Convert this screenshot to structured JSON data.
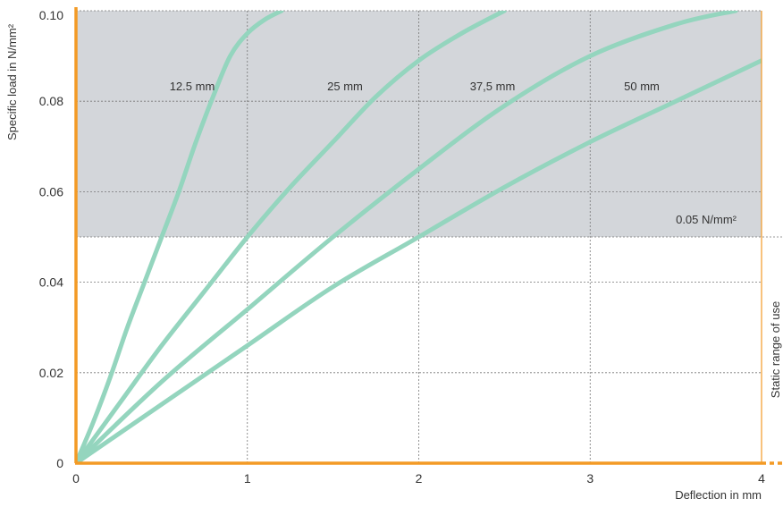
{
  "chart_data": {
    "type": "line",
    "xlabel": "Deflection in mm",
    "ylabel": "Specific load in N/mm²",
    "xlim": [
      0,
      4
    ],
    "ylim": [
      0,
      0.1
    ],
    "x_ticks": [
      "0",
      "1",
      "2",
      "3",
      "4"
    ],
    "y_ticks": [
      "0",
      "0.02",
      "0.04",
      "0.06",
      "0.08",
      "0.10"
    ],
    "grid": true,
    "static_range": {
      "threshold": 0.05,
      "threshold_label": "0.05 N/mm²",
      "label": "Static range of use"
    },
    "series": [
      {
        "name": "12.5 mm",
        "points": [
          [
            0,
            0
          ],
          [
            0.1,
            0.009
          ],
          [
            0.2,
            0.019
          ],
          [
            0.3,
            0.03
          ],
          [
            0.4,
            0.04
          ],
          [
            0.5,
            0.05
          ],
          [
            0.6,
            0.06
          ],
          [
            0.7,
            0.071
          ],
          [
            0.8,
            0.081
          ],
          [
            0.9,
            0.09
          ],
          [
            1.0,
            0.095
          ],
          [
            1.1,
            0.098
          ],
          [
            1.2,
            0.1
          ]
        ]
      },
      {
        "name": "25 mm",
        "points": [
          [
            0,
            0
          ],
          [
            0.25,
            0.013
          ],
          [
            0.5,
            0.026
          ],
          [
            0.75,
            0.038
          ],
          [
            1.0,
            0.05
          ],
          [
            1.25,
            0.061
          ],
          [
            1.5,
            0.071
          ],
          [
            1.75,
            0.081
          ],
          [
            2.0,
            0.089
          ],
          [
            2.25,
            0.095
          ],
          [
            2.5,
            0.1
          ]
        ]
      },
      {
        "name": "37,5 mm",
        "points": [
          [
            0,
            0
          ],
          [
            0.5,
            0.018
          ],
          [
            1.0,
            0.034
          ],
          [
            1.5,
            0.05
          ],
          [
            2.0,
            0.065
          ],
          [
            2.5,
            0.079
          ],
          [
            3.0,
            0.09
          ],
          [
            3.5,
            0.097
          ],
          [
            3.85,
            0.1
          ]
        ]
      },
      {
        "name": "50 mm",
        "points": [
          [
            0,
            0
          ],
          [
            0.5,
            0.013
          ],
          [
            1.0,
            0.026
          ],
          [
            1.5,
            0.039
          ],
          [
            2.0,
            0.05
          ],
          [
            2.5,
            0.061
          ],
          [
            3.0,
            0.071
          ],
          [
            3.5,
            0.08
          ],
          [
            4.0,
            0.089
          ]
        ]
      }
    ],
    "colors": {
      "curve": "#94d5be",
      "axis": "#f39a25",
      "shade": "#d3d6da",
      "grid": "#777777"
    }
  }
}
